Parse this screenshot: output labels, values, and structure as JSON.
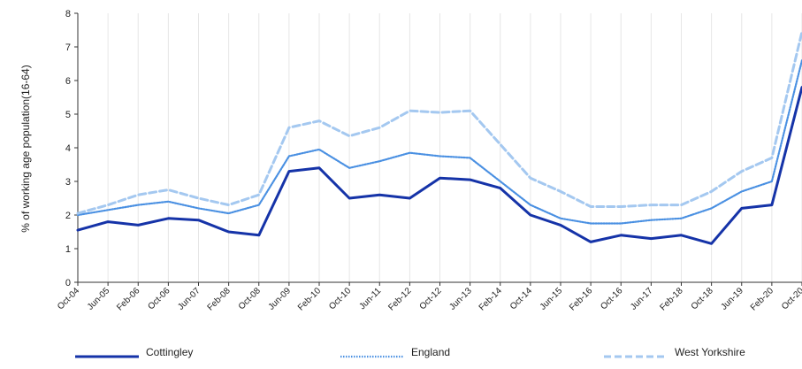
{
  "chart_data": {
    "type": "line",
    "title": "",
    "ylabel": "% of working age population(16-64)",
    "xlabel": "",
    "ylim": [
      0,
      8
    ],
    "yticks": [
      0,
      1,
      2,
      3,
      4,
      5,
      6,
      7,
      8
    ],
    "x_start": "Oct-04",
    "x_end": "Oct-20",
    "xtick_labels": [
      "Oct-04",
      "Jun-05",
      "Feb-06",
      "Oct-06",
      "Jun-07",
      "Feb-08",
      "Oct-08",
      "Jun-09",
      "Feb-10",
      "Oct-10",
      "Jun-11",
      "Feb-12",
      "Oct-12",
      "Jun-13",
      "Feb-14",
      "Oct-14",
      "Jun-15",
      "Feb-16",
      "Oct-16",
      "Jun-17",
      "Feb-18",
      "Oct-18",
      "Jun-19",
      "Feb-20",
      "Oct-20"
    ],
    "grid": "vertical",
    "legend_position": "bottom",
    "series": [
      {
        "name": "Cottingley",
        "color": "#1533a8",
        "style": "solid",
        "points": [
          [
            "Oct-04",
            1.55
          ],
          [
            "Jun-05",
            1.8
          ],
          [
            "Feb-06",
            1.7
          ],
          [
            "Oct-06",
            1.9
          ],
          [
            "Jun-07",
            1.85
          ],
          [
            "Feb-08",
            1.5
          ],
          [
            "Oct-08",
            1.4
          ],
          [
            "Jun-09",
            3.3
          ],
          [
            "Feb-10",
            3.4
          ],
          [
            "Oct-10",
            2.5
          ],
          [
            "Jun-11",
            2.6
          ],
          [
            "Feb-12",
            2.5
          ],
          [
            "Oct-12",
            3.1
          ],
          [
            "Jun-13",
            3.05
          ],
          [
            "Feb-14",
            2.8
          ],
          [
            "Oct-14",
            2.0
          ],
          [
            "Jun-15",
            1.7
          ],
          [
            "Feb-16",
            1.2
          ],
          [
            "Oct-16",
            1.4
          ],
          [
            "Jun-17",
            1.3
          ],
          [
            "Feb-18",
            1.4
          ],
          [
            "Oct-18",
            1.15
          ],
          [
            "Jun-19",
            2.2
          ],
          [
            "Feb-20",
            2.3
          ],
          [
            "Oct-20",
            5.8
          ]
        ]
      },
      {
        "name": "England",
        "color": "#4a90e2",
        "style": "dotted",
        "points": [
          [
            "Oct-04",
            2.0
          ],
          [
            "Jun-05",
            2.15
          ],
          [
            "Feb-06",
            2.3
          ],
          [
            "Oct-06",
            2.4
          ],
          [
            "Jun-07",
            2.2
          ],
          [
            "Feb-08",
            2.05
          ],
          [
            "Oct-08",
            2.3
          ],
          [
            "Jun-09",
            3.75
          ],
          [
            "Feb-10",
            3.95
          ],
          [
            "Oct-10",
            3.4
          ],
          [
            "Jun-11",
            3.6
          ],
          [
            "Feb-12",
            3.85
          ],
          [
            "Oct-12",
            3.75
          ],
          [
            "Jun-13",
            3.7
          ],
          [
            "Feb-14",
            3.0
          ],
          [
            "Oct-14",
            2.3
          ],
          [
            "Jun-15",
            1.9
          ],
          [
            "Feb-16",
            1.75
          ],
          [
            "Oct-16",
            1.75
          ],
          [
            "Jun-17",
            1.85
          ],
          [
            "Feb-18",
            1.9
          ],
          [
            "Oct-18",
            2.2
          ],
          [
            "Jun-19",
            2.7
          ],
          [
            "Feb-20",
            3.0
          ],
          [
            "Oct-20",
            6.6
          ]
        ]
      },
      {
        "name": "West Yorkshire",
        "color": "#a4c8f0",
        "style": "dashed",
        "points": [
          [
            "Oct-04",
            2.05
          ],
          [
            "Jun-05",
            2.3
          ],
          [
            "Feb-06",
            2.6
          ],
          [
            "Oct-06",
            2.75
          ],
          [
            "Jun-07",
            2.5
          ],
          [
            "Feb-08",
            2.3
          ],
          [
            "Oct-08",
            2.6
          ],
          [
            "Jun-09",
            4.6
          ],
          [
            "Feb-10",
            4.8
          ],
          [
            "Oct-10",
            4.35
          ],
          [
            "Jun-11",
            4.6
          ],
          [
            "Feb-12",
            5.1
          ],
          [
            "Oct-12",
            5.05
          ],
          [
            "Jun-13",
            5.1
          ],
          [
            "Feb-14",
            4.1
          ],
          [
            "Oct-14",
            3.1
          ],
          [
            "Jun-15",
            2.7
          ],
          [
            "Feb-16",
            2.25
          ],
          [
            "Oct-16",
            2.25
          ],
          [
            "Jun-17",
            2.3
          ],
          [
            "Feb-18",
            2.3
          ],
          [
            "Oct-18",
            2.7
          ],
          [
            "Jun-19",
            3.3
          ],
          [
            "Feb-20",
            3.7
          ],
          [
            "Oct-20",
            7.45
          ]
        ]
      }
    ]
  }
}
